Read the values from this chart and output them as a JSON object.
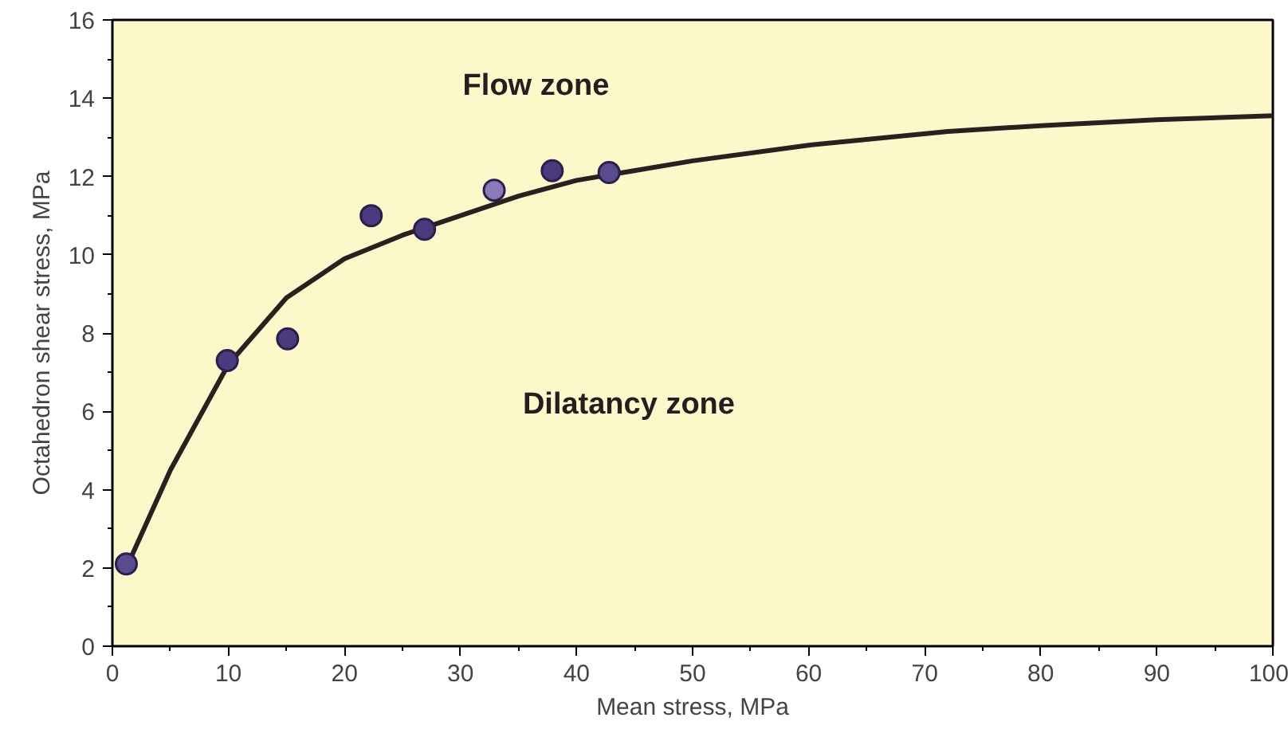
{
  "chart_data": {
    "type": "scatter",
    "xlabel": "Mean stress, MPa",
    "ylabel": "Octahedron shear stress, MPa",
    "xlim": [
      0,
      100
    ],
    "ylim": [
      0,
      16
    ],
    "xticks": [
      0,
      10,
      20,
      30,
      40,
      50,
      60,
      70,
      80,
      90,
      100
    ],
    "yticks": [
      0,
      2,
      4,
      6,
      8,
      10,
      12,
      14,
      16
    ],
    "grid": false,
    "series": [
      {
        "type": "line",
        "color": "#2b1f1f",
        "x": [
          1.2,
          5,
          10,
          15,
          20,
          25,
          30,
          35,
          40,
          50,
          60,
          72,
          80,
          90,
          100
        ],
        "values": [
          2.0,
          4.5,
          7.2,
          8.9,
          9.9,
          10.5,
          11.0,
          11.5,
          11.9,
          12.4,
          12.8,
          13.15,
          13.3,
          13.45,
          13.55
        ]
      },
      {
        "marker": "circle",
        "x": [
          1.2,
          9.9,
          15.1,
          22.3,
          26.9,
          32.9,
          37.9,
          42.8
        ],
        "values": [
          2.1,
          7.3,
          7.85,
          11.0,
          10.65,
          11.65,
          12.15,
          12.1
        ],
        "colors": [
          "#5a4a8e",
          "#4a3a7e",
          "#4a3a7e",
          "#4a3a7e",
          "#4a3a7e",
          "#8a7ab8",
          "#4a3a7e",
          "#5a4a8e"
        ]
      }
    ],
    "annotations": [
      "Flow zone",
      "Dilatancy zone"
    ]
  }
}
